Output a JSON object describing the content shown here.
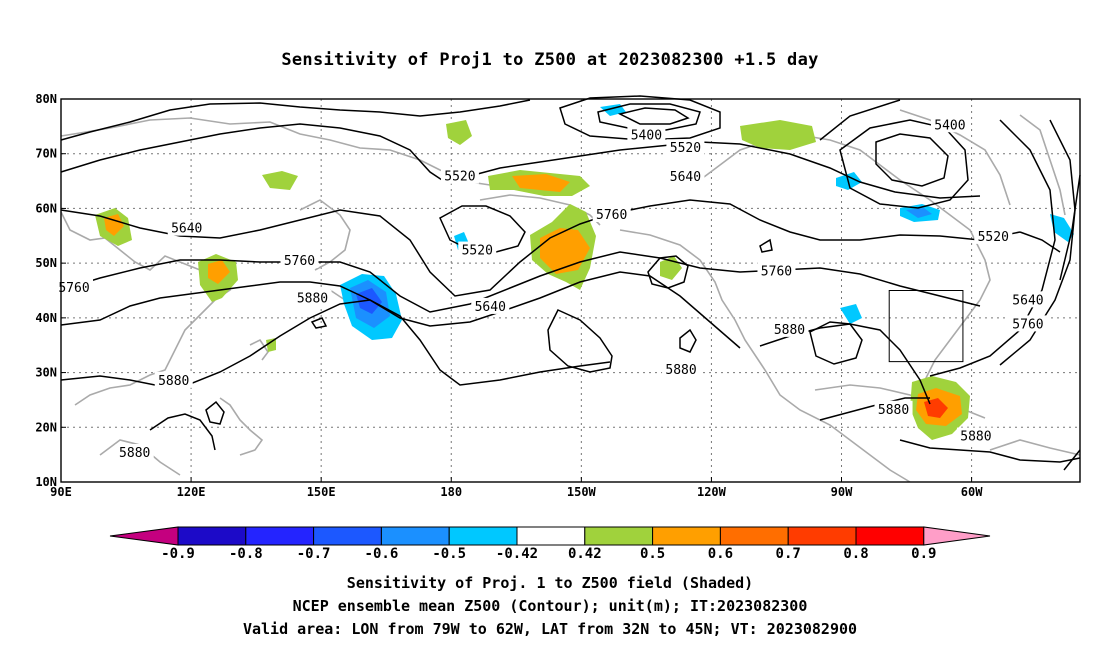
{
  "title": "Sensitivity of Proj1 to Z500 at 2023082300 +1.5 day",
  "lon_ticks": [
    {
      "lon": 90,
      "label": "90E"
    },
    {
      "lon": 120,
      "label": "120E"
    },
    {
      "lon": 150,
      "label": "150E"
    },
    {
      "lon": 180,
      "label": "180"
    },
    {
      "lon": 210,
      "label": "150W"
    },
    {
      "lon": 240,
      "label": "120W"
    },
    {
      "lon": 270,
      "label": "90W"
    },
    {
      "lon": 300,
      "label": "60W"
    }
  ],
  "lat_ticks": [
    {
      "lat": 80,
      "label": "80N"
    },
    {
      "lat": 70,
      "label": "70N"
    },
    {
      "lat": 60,
      "label": "60N"
    },
    {
      "lat": 50,
      "label": "50N"
    },
    {
      "lat": 40,
      "label": "40N"
    },
    {
      "lat": 30,
      "label": "30N"
    },
    {
      "lat": 20,
      "label": "20N"
    },
    {
      "lat": 10,
      "label": "10N"
    }
  ],
  "extent": {
    "lon_min": 90,
    "lon_max": 325,
    "lat_min": 10,
    "lat_max": 80
  },
  "valid_box": {
    "lon_min": 281,
    "lon_max": 298,
    "lat_min": 32,
    "lat_max": 45
  },
  "contour_labels": [
    {
      "text": "5400",
      "lon": 225,
      "lat": 73.3
    },
    {
      "text": "5400",
      "lon": 295,
      "lat": 75.2
    },
    {
      "text": "5520",
      "lon": 234,
      "lat": 71
    },
    {
      "text": "5520",
      "lon": 182,
      "lat": 65.8
    },
    {
      "text": "5520",
      "lon": 186,
      "lat": 52.3
    },
    {
      "text": "5520",
      "lon": 305,
      "lat": 54.8
    },
    {
      "text": "5640",
      "lon": 119,
      "lat": 56.3
    },
    {
      "text": "5640",
      "lon": 234,
      "lat": 65.7
    },
    {
      "text": "5640",
      "lon": 189,
      "lat": 42
    },
    {
      "text": "5640",
      "lon": 313,
      "lat": 43.2
    },
    {
      "text": "5760",
      "lon": 93,
      "lat": 45.5
    },
    {
      "text": "5760",
      "lon": 145,
      "lat": 50.4
    },
    {
      "text": "5760",
      "lon": 217,
      "lat": 58.8
    },
    {
      "text": "5760",
      "lon": 255,
      "lat": 48.5
    },
    {
      "text": "5760",
      "lon": 313,
      "lat": 38.8
    },
    {
      "text": "5880",
      "lon": 148,
      "lat": 43.5
    },
    {
      "text": "5880",
      "lon": 258,
      "lat": 37.8
    },
    {
      "text": "5880",
      "lon": 233,
      "lat": 30.5
    },
    {
      "text": "5880",
      "lon": 116,
      "lat": 28.5
    },
    {
      "text": "5880",
      "lon": 282,
      "lat": 23.2
    },
    {
      "text": "5880",
      "lon": 301,
      "lat": 18.3
    },
    {
      "text": "5880",
      "lon": 107,
      "lat": 15.3
    }
  ],
  "colorbar": {
    "colors": [
      "#c4007f",
      "#1c0ac8",
      "#2424ff",
      "#1c58ff",
      "#1b90ff",
      "#00c8ff",
      "#ffffff",
      "#a0d23c",
      "#ff9f00",
      "#ff6e00",
      "#ff3c00",
      "#ff0000",
      "#ff9ec8"
    ],
    "labels": [
      "-0.9",
      "-0.8",
      "-0.7",
      "-0.6",
      "-0.5",
      "-0.42",
      "0.42",
      "0.5",
      "0.6",
      "0.7",
      "0.8",
      "0.9"
    ]
  },
  "caption": {
    "line1": "Sensitivity of Proj. 1 to Z500 field (Shaded)",
    "line2": "NCEP ensemble mean Z500 (Contour); unit(m); IT:2023082300",
    "line3": "Valid area: LON from 79W to 62W, LAT from 32N to 45N; VT: 2023082900"
  }
}
